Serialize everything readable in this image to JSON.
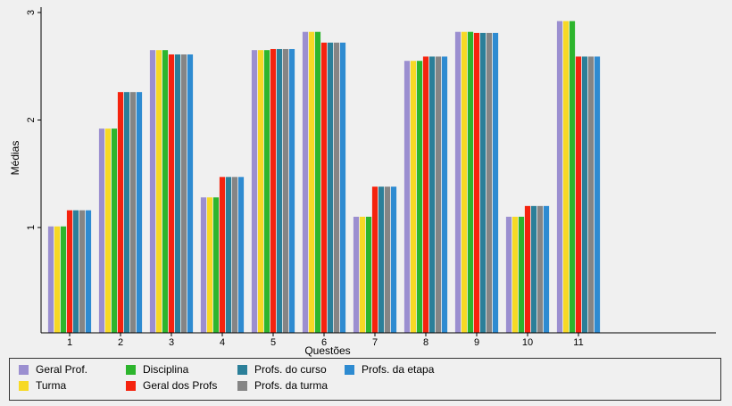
{
  "chart_data": {
    "type": "bar",
    "xlabel": "Questões",
    "ylabel": "Médias",
    "ylim": [
      0.02,
      3.05
    ],
    "yticks": [
      1,
      2,
      3
    ],
    "grid": false,
    "legend_position": "bottom",
    "categories": [
      "1",
      "2",
      "3",
      "4",
      "5",
      "6",
      "7",
      "8",
      "9",
      "10",
      "11"
    ],
    "series": [
      {
        "name": "Geral Prof.",
        "color": "#9b8fd0",
        "values": [
          1.01,
          1.92,
          2.65,
          1.28,
          2.65,
          2.82,
          1.1,
          2.55,
          2.82,
          1.1,
          2.92
        ]
      },
      {
        "name": "Turma",
        "color": "#f7d925",
        "values": [
          1.01,
          1.92,
          2.65,
          1.28,
          2.65,
          2.82,
          1.1,
          2.55,
          2.82,
          1.1,
          2.92
        ]
      },
      {
        "name": "Disciplina",
        "color": "#2db52d",
        "values": [
          1.01,
          1.92,
          2.65,
          1.28,
          2.65,
          2.82,
          1.1,
          2.55,
          2.82,
          1.1,
          2.92
        ]
      },
      {
        "name": "Geral dos Profs",
        "color": "#f5230e",
        "values": [
          1.16,
          2.26,
          2.61,
          1.47,
          2.66,
          2.72,
          1.38,
          2.59,
          2.81,
          1.2,
          2.59
        ]
      },
      {
        "name": "Profs. do curso",
        "color": "#2b7f99",
        "values": [
          1.16,
          2.26,
          2.61,
          1.47,
          2.66,
          2.72,
          1.38,
          2.59,
          2.81,
          1.2,
          2.59
        ]
      },
      {
        "name": "Profs. da turma",
        "color": "#858585",
        "values": [
          1.16,
          2.26,
          2.61,
          1.47,
          2.66,
          2.72,
          1.38,
          2.59,
          2.81,
          1.2,
          2.59
        ]
      },
      {
        "name": "Profs. da etapa",
        "color": "#2e8bd1",
        "values": [
          1.16,
          2.26,
          2.61,
          1.47,
          2.66,
          2.72,
          1.38,
          2.59,
          2.81,
          1.2,
          2.59
        ]
      }
    ]
  }
}
